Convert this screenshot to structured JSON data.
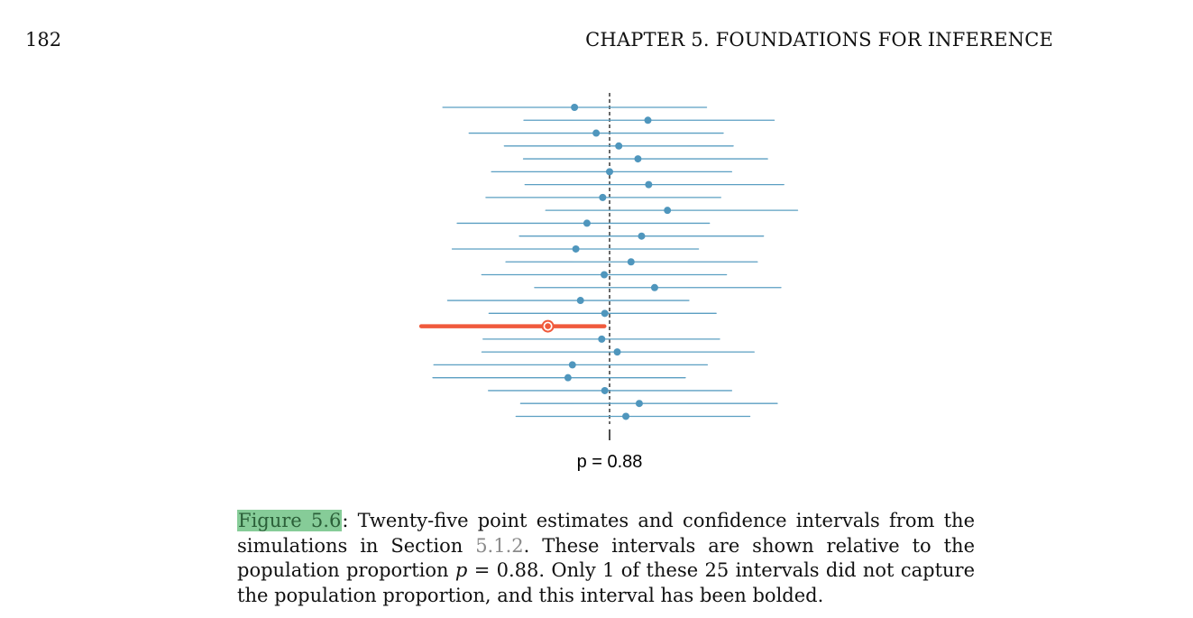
{
  "header": {
    "page_number": "182",
    "running_title": "CHAPTER 5.  FOUNDATIONS FOR INFERENCE"
  },
  "colors": {
    "interval": "#5b9fc2",
    "point": "#4f96bd",
    "highlight": "#f05a3c",
    "reference_line": "#444444",
    "figure_ref_bg": "#86cc98"
  },
  "chart_data": {
    "type": "scatter",
    "description_of_marks": "horizontal confidence interval segments with point estimates",
    "reference_value": 0.88,
    "reference_label": "p = 0.88",
    "xlim": [
      0.72,
      1.04
    ],
    "intervals": [
      {
        "estimate": 0.8617,
        "lower": 0.793,
        "upper": 0.9306
      },
      {
        "estimate": 0.9,
        "lower": 0.8353,
        "upper": 0.9659
      },
      {
        "estimate": 0.873,
        "lower": 0.8067,
        "upper": 0.9393
      },
      {
        "estimate": 0.8848,
        "lower": 0.8251,
        "upper": 0.9445
      },
      {
        "estimate": 0.8948,
        "lower": 0.8351,
        "upper": 0.9624
      },
      {
        "estimate": 0.88,
        "lower": 0.8184,
        "upper": 0.9437
      },
      {
        "estimate": 0.9004,
        "lower": 0.8359,
        "upper": 0.9709
      },
      {
        "estimate": 0.8764,
        "lower": 0.8155,
        "upper": 0.938
      },
      {
        "estimate": 0.9102,
        "lower": 0.8467,
        "upper": 0.9781
      },
      {
        "estimate": 0.8682,
        "lower": 0.8005,
        "upper": 0.9321
      },
      {
        "estimate": 0.8967,
        "lower": 0.833,
        "upper": 0.9603
      },
      {
        "estimate": 0.8624,
        "lower": 0.7979,
        "upper": 0.9264
      },
      {
        "estimate": 0.8912,
        "lower": 0.8259,
        "upper": 0.9571
      },
      {
        "estimate": 0.8772,
        "lower": 0.8133,
        "upper": 0.941
      },
      {
        "estimate": 0.9035,
        "lower": 0.8409,
        "upper": 0.9694
      },
      {
        "estimate": 0.8648,
        "lower": 0.7955,
        "upper": 0.9214
      },
      {
        "estimate": 0.8775,
        "lower": 0.8171,
        "upper": 0.9356
      },
      {
        "estimate": 0.8478,
        "lower": 0.7817,
        "upper": 0.8773,
        "missed": true
      },
      {
        "estimate": 0.8759,
        "lower": 0.814,
        "upper": 0.9374
      },
      {
        "estimate": 0.884,
        "lower": 0.8134,
        "upper": 0.9554
      },
      {
        "estimate": 0.8606,
        "lower": 0.7883,
        "upper": 0.931
      },
      {
        "estimate": 0.8583,
        "lower": 0.7878,
        "upper": 0.9195
      },
      {
        "estimate": 0.8775,
        "lower": 0.8168,
        "upper": 0.9437
      },
      {
        "estimate": 0.8955,
        "lower": 0.8336,
        "upper": 0.9675
      },
      {
        "estimate": 0.8885,
        "lower": 0.8312,
        "upper": 0.9532
      }
    ]
  },
  "caption": {
    "figure_ref": "Figure 5.6",
    "text_1": ":  Twenty-five point estimates and confidence intervals from the simulations in Section ",
    "section_ref": "5.1.2",
    "text_2": ".  These intervals are shown relative to the population proportion ",
    "math_var": "p",
    "text_3": " = 0.88. Only 1 of these 25 intervals did not capture the population proportion, and this interval has been bolded."
  }
}
